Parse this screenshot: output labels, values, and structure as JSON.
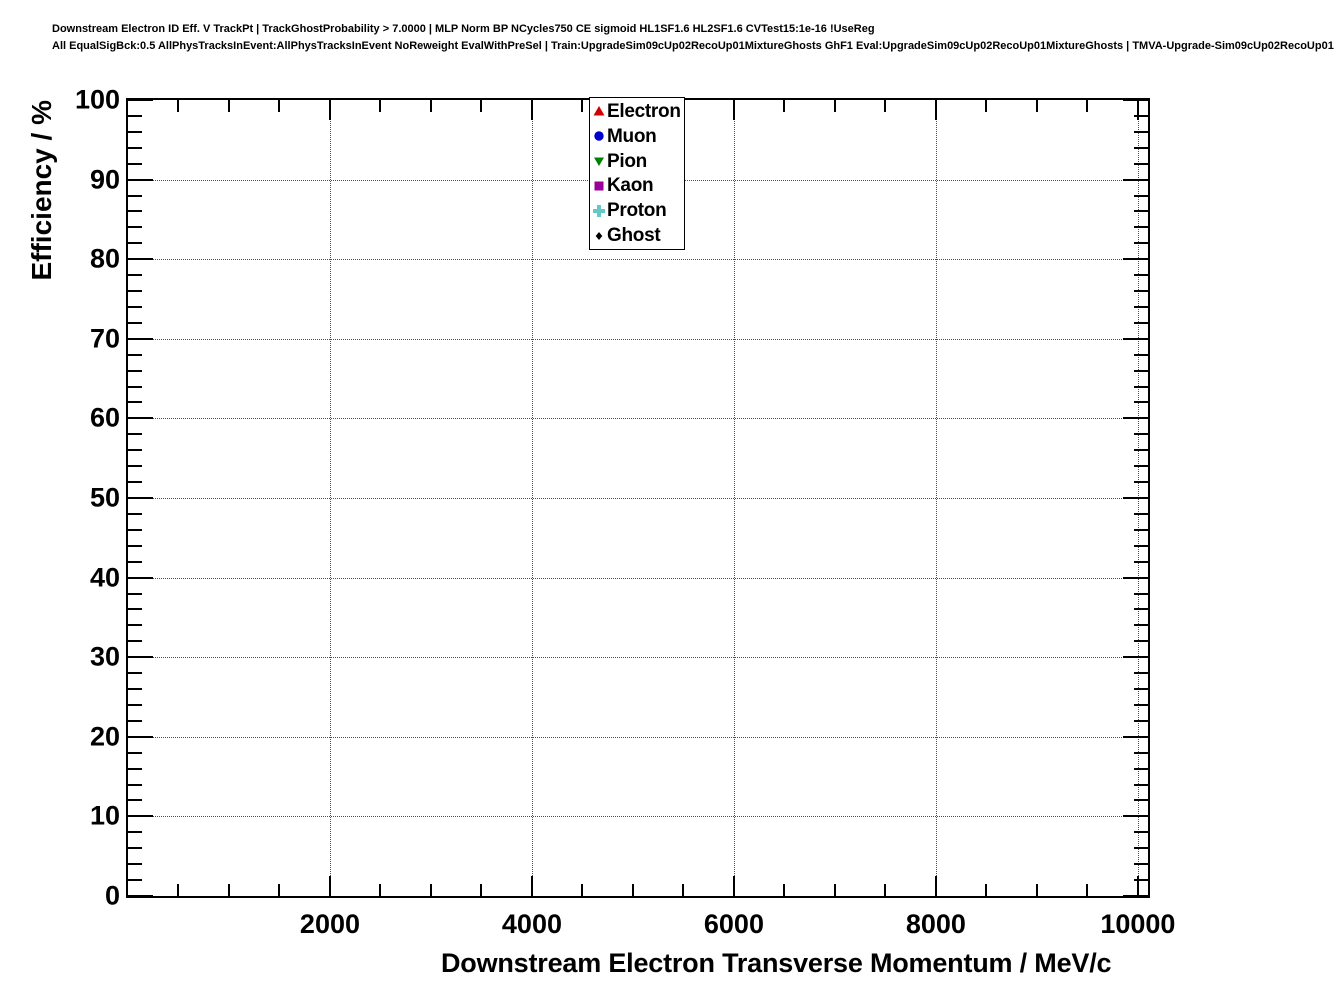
{
  "header": {
    "line1": "Downstream Electron ID Eff. V TrackPt | TrackGhostProbability > 7.0000 | MLP Norm BP NCycles750 CE sigmoid HL1SF1.6 HL2SF1.6 CVTest15:1e-16 !UseReg",
    "line2": "All EqualSigBck:0.5 AllPhysTracksInEvent:AllPhysTracksInEvent NoReweight EvalWithPreSel | Train:UpgradeSim09cUp02RecoUp01MixtureGhosts GhF1 Eval:UpgradeSim09cUp02RecoUp01MixtureGhosts | TMVA-Upgrade-Sim09cUp02RecoUp01"
  },
  "chart_data": {
    "type": "scatter",
    "title": "",
    "xlabel": "Downstream Electron Transverse Momentum / MeV/c",
    "ylabel": "Efficiency / %",
    "xlim": [
      0,
      10100
    ],
    "ylim": [
      0,
      100
    ],
    "x_major_ticks": [
      2000,
      4000,
      6000,
      8000,
      10000
    ],
    "x_minor_step": 500,
    "y_major_ticks": [
      0,
      10,
      20,
      30,
      40,
      50,
      60,
      70,
      80,
      90,
      100
    ],
    "y_minor_step": 2,
    "grid": {
      "style": "dotted",
      "on_major_x": true,
      "on_major_y": true
    },
    "legend_position": "top-center-inside",
    "frame_color": "#000000",
    "background_color": "#ffffff",
    "series": [
      {
        "name": "Electron",
        "marker": "triangle-up",
        "color": "#d40000",
        "points": []
      },
      {
        "name": "Muon",
        "marker": "circle",
        "color": "#0000cc",
        "points": []
      },
      {
        "name": "Pion",
        "marker": "triangle-down",
        "color": "#008000",
        "points": []
      },
      {
        "name": "Kaon",
        "marker": "square",
        "color": "#990099",
        "points": []
      },
      {
        "name": "Proton",
        "marker": "cross",
        "color": "#62c8c8",
        "points": []
      },
      {
        "name": "Ghost",
        "marker": "diamond",
        "color": "#000000",
        "points": []
      }
    ]
  }
}
